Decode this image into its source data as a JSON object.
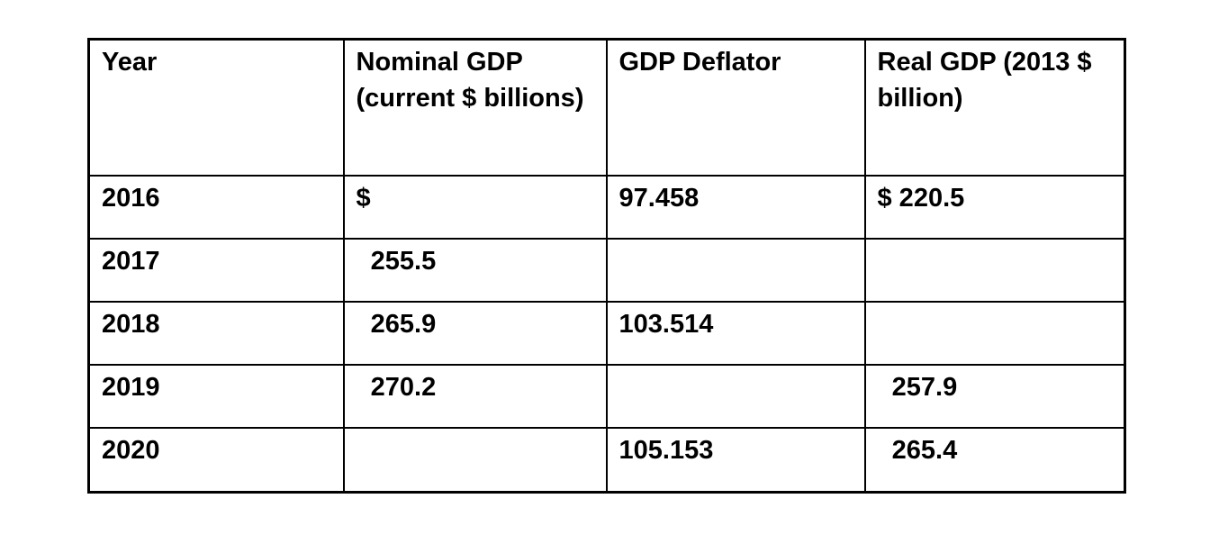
{
  "table": {
    "columns": [
      {
        "label": "Year"
      },
      {
        "label": "Nominal GDP (current $ billions)"
      },
      {
        "label": "GDP Deflator"
      },
      {
        "label": "Real GDP (2013 $ billion)"
      }
    ],
    "rows": [
      {
        "year": "2016",
        "nominal_gdp": "$",
        "gdp_deflator": "97.458",
        "real_gdp": "$ 220.5"
      },
      {
        "year": "2017",
        "nominal_gdp": "  255.5",
        "gdp_deflator": "",
        "real_gdp": ""
      },
      {
        "year": "2018",
        "nominal_gdp": "  265.9",
        "gdp_deflator": "103.514",
        "real_gdp": ""
      },
      {
        "year": "2019",
        "nominal_gdp": "  270.2",
        "gdp_deflator": "",
        "real_gdp": "  257.9"
      },
      {
        "year": "2020",
        "nominal_gdp": "",
        "gdp_deflator": "105.153",
        "real_gdp": "  265.4"
      }
    ]
  },
  "colors": {
    "text": "#000000",
    "border": "#000000",
    "background": "#ffffff"
  },
  "chart_data": {
    "type": "table",
    "columns": [
      "Year",
      "Nominal GDP (current $ billions)",
      "GDP Deflator",
      "Real GDP (2013 $ billion)"
    ],
    "rows": [
      [
        "2016",
        "$",
        "97.458",
        "$ 220.5"
      ],
      [
        "2017",
        "255.5",
        "",
        ""
      ],
      [
        "2018",
        "265.9",
        "103.514",
        ""
      ],
      [
        "2019",
        "270.2",
        "",
        "257.9"
      ],
      [
        "2020",
        "",
        "105.153",
        "265.4"
      ]
    ]
  }
}
